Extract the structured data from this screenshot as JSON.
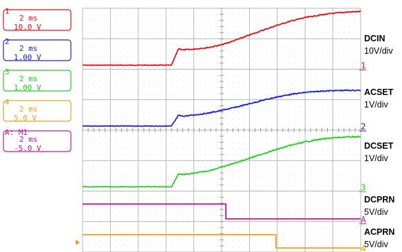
{
  "chart_data": {
    "type": "line",
    "title": "",
    "xlabel": "",
    "ylabel": "",
    "x_units": "ms",
    "time_per_div_ms": 2,
    "x_range_ms": [
      0,
      20
    ],
    "grid": true,
    "legend_placement": "right",
    "channel_labels": [
      {
        "num": "1",
        "ms": "2 ms",
        "volts": "10.0 V",
        "color": "#e8101a"
      },
      {
        "num": "2",
        "ms": "2 ms",
        "volts": "1.00 V",
        "color": "#1a22e0"
      },
      {
        "num": "3",
        "ms": "2 ms",
        "volts": "1.00 V",
        "color": "#22d022"
      },
      {
        "num": "4",
        "ms": "2 ms",
        "volts": "5.0 V",
        "color": "#f0a020"
      },
      {
        "num": "A",
        "tag": "M1",
        "ms": "2 ms",
        "volts": "-5.0 V",
        "color": "#c8179e"
      }
    ],
    "series": [
      {
        "name": "DCIN",
        "scale": "10V/div",
        "marker": "1",
        "color": "#e8101a",
        "x": [
          0,
          6.4,
          6.9,
          7.2,
          7.8,
          9,
          10,
          11,
          12,
          13,
          14,
          15,
          16,
          17,
          18,
          19,
          20
        ],
        "y": [
          0,
          0,
          9,
          8.3,
          8.5,
          9.5,
          11,
          13.5,
          16.3,
          19,
          21.6,
          23.9,
          25.7,
          27,
          28,
          28.7,
          29
        ],
        "ylim": [
          -2,
          30
        ]
      },
      {
        "name": "ACSET",
        "scale": "1V/div",
        "marker": "2",
        "color": "#1a22e0",
        "x": [
          0,
          6.4,
          6.9,
          7.2,
          7.8,
          9,
          10,
          11,
          12,
          13,
          14,
          15,
          16,
          17,
          18,
          19,
          20
        ],
        "y": [
          0,
          0,
          0.6,
          0.55,
          0.6,
          0.72,
          0.88,
          1.05,
          1.25,
          1.45,
          1.63,
          1.78,
          1.88,
          1.95,
          1.98,
          2.0,
          2.0
        ],
        "ylim": [
          -0.15,
          2.2
        ]
      },
      {
        "name": "DCSET",
        "scale": "1V/div",
        "marker": "3",
        "color": "#22d022",
        "x": [
          0,
          6.4,
          6.9,
          7.2,
          7.8,
          9,
          10,
          11,
          12,
          13,
          14,
          15,
          16,
          17,
          18,
          19,
          20
        ],
        "y": [
          0,
          0,
          0.8,
          0.75,
          0.8,
          0.97,
          1.2,
          1.47,
          1.75,
          2.03,
          2.3,
          2.55,
          2.75,
          2.9,
          3.0,
          3.05,
          3.07
        ],
        "ylim": [
          -0.2,
          3.3
        ]
      },
      {
        "name": "DCPRN",
        "scale": "5V/div",
        "marker": "A",
        "color": "#c8179e",
        "x": [
          0,
          10.3,
          10.3,
          20
        ],
        "y": [
          5,
          5,
          0,
          0
        ],
        "ylim": [
          -0.5,
          6
        ]
      },
      {
        "name": "ACPRN",
        "scale": "5V/div",
        "marker": "4",
        "color": "#f0a020",
        "x": [
          0,
          13.9,
          13.9,
          20
        ],
        "y": [
          5,
          5,
          0,
          0
        ],
        "ylim": [
          -0.5,
          6
        ]
      }
    ]
  }
}
